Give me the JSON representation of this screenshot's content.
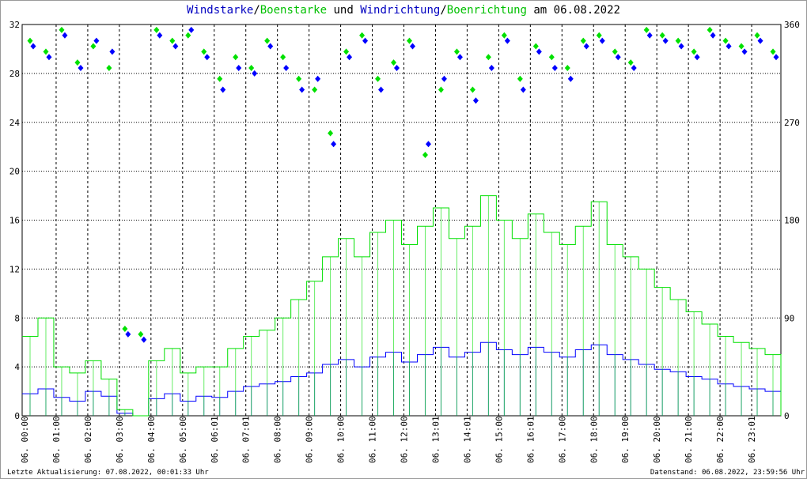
{
  "chart_data": {
    "type": "line",
    "title_parts": [
      {
        "text": "Windstarke",
        "color": "#0000c0"
      },
      {
        "text": "/",
        "color": "#000000"
      },
      {
        "text": "Boenstarke",
        "color": "#00c000"
      },
      {
        "text": " und ",
        "color": "#000000"
      },
      {
        "text": "Windrichtung",
        "color": "#0000c0"
      },
      {
        "text": "/",
        "color": "#000000"
      },
      {
        "text": "Boenrichtung",
        "color": "#00c000"
      },
      {
        "text": " am 06.08.2022",
        "color": "#000000"
      }
    ],
    "x_tick_labels": [
      "06. 00:00",
      "06. 01:00",
      "06. 02:00",
      "06. 03:00",
      "06. 04:00",
      "06. 05:00",
      "06. 06:01",
      "06. 07:01",
      "06. 08:00",
      "06. 09:00",
      "06. 10:00",
      "06. 11:00",
      "06. 12:00",
      "06. 13:01",
      "06. 14:01",
      "06. 15:00",
      "06. 16:01",
      "06. 17:00",
      "06. 18:00",
      "06. 19:00",
      "06. 20:00",
      "06. 21:00",
      "06. 22:00",
      "06. 23:01"
    ],
    "xlim_hours": [
      0,
      24
    ],
    "y_left": {
      "ticks": [
        0,
        4,
        8,
        12,
        16,
        20,
        24,
        28,
        32
      ],
      "ylim": [
        0,
        32
      ]
    },
    "y_right": {
      "ticks": [
        0,
        90,
        180,
        270,
        360
      ],
      "ylim": [
        0,
        360
      ]
    },
    "grid": true,
    "series": [
      {
        "name": "Windstarke",
        "kind": "line",
        "axis": "left",
        "color": "#0000ff",
        "values": [
          1.8,
          2.2,
          1.5,
          1.2,
          2.0,
          1.6,
          0.2,
          0,
          1.4,
          1.8,
          1.2,
          1.6,
          1.5,
          2.0,
          2.4,
          2.6,
          2.8,
          3.2,
          3.5,
          4.2,
          4.6,
          4.0,
          4.8,
          5.2,
          4.4,
          5.0,
          5.6,
          4.8,
          5.2,
          6.0,
          5.4,
          5.0,
          5.6,
          5.2,
          4.8,
          5.4,
          5.8,
          5.0,
          4.6,
          4.2,
          3.8,
          3.6,
          3.2,
          3.0,
          2.6,
          2.4,
          2.2,
          2.0
        ]
      },
      {
        "name": "Boenstarke",
        "kind": "line",
        "axis": "left",
        "color": "#00e000",
        "values": [
          6.5,
          8.0,
          4.0,
          3.5,
          4.5,
          3.0,
          0.5,
          0,
          4.5,
          5.5,
          3.5,
          4.0,
          4.0,
          5.5,
          6.5,
          7.0,
          8.0,
          9.5,
          11.0,
          13.0,
          14.5,
          13.0,
          15.0,
          16.0,
          14.0,
          15.5,
          17.0,
          14.5,
          15.5,
          18.0,
          16.0,
          14.5,
          16.5,
          15.0,
          14.0,
          15.5,
          17.5,
          14.0,
          13.0,
          12.0,
          10.5,
          9.5,
          8.5,
          7.5,
          6.5,
          6.0,
          5.5,
          5.0
        ]
      },
      {
        "name": "Boenrichtung",
        "kind": "scatter",
        "axis": "right",
        "color": "#00e000",
        "values": [
          345,
          335,
          355,
          325,
          340,
          320,
          80,
          75,
          355,
          345,
          350,
          335,
          310,
          330,
          320,
          345,
          330,
          310,
          300,
          260,
          335,
          350,
          310,
          325,
          345,
          240,
          300,
          335,
          300,
          330,
          350,
          310,
          340,
          330,
          320,
          345,
          350,
          335,
          325,
          355,
          350,
          345,
          335,
          355,
          345,
          340,
          350,
          335
        ]
      },
      {
        "name": "Windrichtung",
        "kind": "scatter",
        "axis": "right",
        "color": "#0000ff",
        "values": [
          340,
          330,
          350,
          320,
          345,
          335,
          75,
          70,
          350,
          340,
          355,
          330,
          300,
          320,
          315,
          340,
          320,
          300,
          310,
          250,
          330,
          345,
          300,
          320,
          340,
          250,
          310,
          330,
          290,
          320,
          345,
          300,
          335,
          320,
          310,
          340,
          345,
          330,
          320,
          350,
          345,
          340,
          330,
          350,
          340,
          335,
          345,
          330
        ]
      }
    ],
    "x_step_hours": 0.5
  },
  "footer": {
    "left": "Letzte Aktualisierung: 07.08.2022, 00:01:33 Uhr",
    "right": "Datenstand: 06.08.2022, 23:59:56 Uhr"
  }
}
